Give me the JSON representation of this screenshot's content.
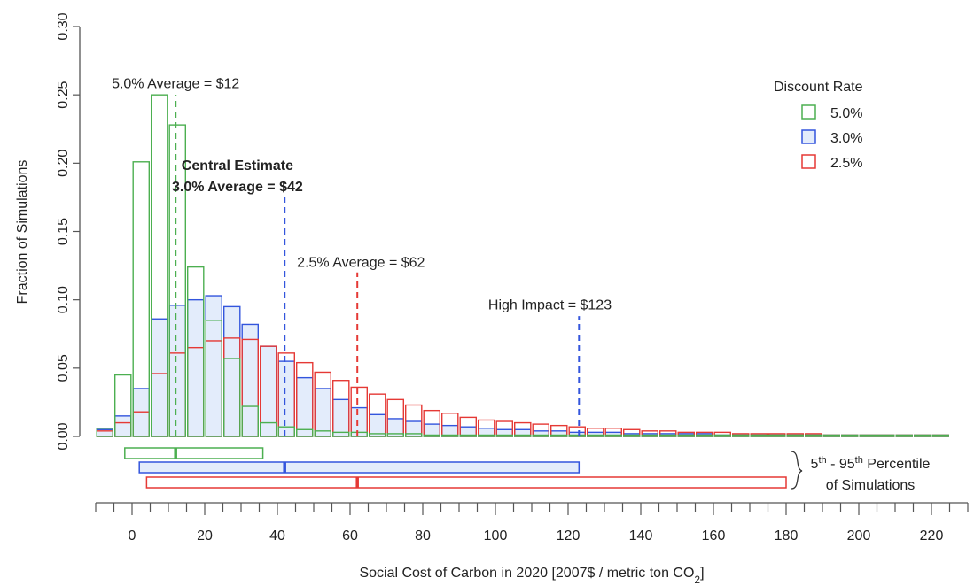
{
  "chart_data": {
    "type": "bar",
    "subtype": "overlaid-histogram",
    "xlabel": "Social Cost of Carbon in 2020 [2007$ / metric ton CO",
    "xlabel_subscript": "2",
    "xlabel_suffix": "]",
    "ylabel": "Fraction of Simulations",
    "xlim": [
      -10,
      230
    ],
    "ylim": [
      0,
      0.3
    ],
    "x_ticks": [
      0,
      20,
      40,
      60,
      80,
      100,
      120,
      140,
      160,
      180,
      200,
      220
    ],
    "y_ticks": [
      "0.00",
      "0.05",
      "0.10",
      "0.15",
      "0.20",
      "0.25",
      "0.30"
    ],
    "minor_tick_step": 5,
    "bin_width": 5,
    "grid": false,
    "legend": {
      "title": "Discount Rate",
      "position": "top-right",
      "entries": [
        "5.0%",
        "3.0%",
        "2.5%"
      ]
    },
    "series": [
      {
        "name": "5.0%",
        "color": "#4caf50",
        "fill": "none",
        "bin_start": -10,
        "values": [
          0.006,
          0.045,
          0.201,
          0.25,
          0.228,
          0.124,
          0.085,
          0.057,
          0.022,
          0.01,
          0.007,
          0.005,
          0.004,
          0.003,
          0.003,
          0.002,
          0.002,
          0.002,
          0.001,
          0.001,
          0.001,
          0.001,
          0.001,
          0.001,
          0.001,
          0.001,
          0.001,
          0.001,
          0.001,
          0.001,
          0.001,
          0.001,
          0.001,
          0.001,
          0.001,
          0.001,
          0.001,
          0.001,
          0.001,
          0.001,
          0.001,
          0.001,
          0.001,
          0.001,
          0.001,
          0.001,
          0.001
        ]
      },
      {
        "name": "3.0%",
        "color": "#3355dd",
        "fill": "#e3ecfb",
        "bin_start": -10,
        "values": [
          0.005,
          0.015,
          0.035,
          0.086,
          0.096,
          0.1,
          0.103,
          0.095,
          0.082,
          0.066,
          0.055,
          0.043,
          0.035,
          0.027,
          0.021,
          0.016,
          0.013,
          0.011,
          0.009,
          0.008,
          0.007,
          0.006,
          0.005,
          0.005,
          0.004,
          0.004,
          0.003,
          0.003,
          0.003,
          0.002,
          0.002,
          0.002,
          0.002,
          0.002,
          0.001,
          0.001,
          0.001,
          0.001,
          0.001,
          0.001,
          0.001,
          0.001,
          0.001,
          0.001,
          0.001,
          0.001,
          0.001
        ]
      },
      {
        "name": "2.5%",
        "color": "#e53935",
        "fill": "none",
        "bin_start": -10,
        "values": [
          0.004,
          0.01,
          0.018,
          0.046,
          0.061,
          0.065,
          0.07,
          0.072,
          0.071,
          0.066,
          0.061,
          0.054,
          0.047,
          0.041,
          0.036,
          0.031,
          0.027,
          0.023,
          0.019,
          0.017,
          0.014,
          0.012,
          0.011,
          0.01,
          0.009,
          0.008,
          0.007,
          0.006,
          0.006,
          0.005,
          0.004,
          0.004,
          0.003,
          0.003,
          0.003,
          0.002,
          0.002,
          0.002,
          0.002,
          0.002,
          0.001,
          0.001,
          0.001,
          0.001,
          0.001,
          0.001,
          0.001
        ]
      }
    ],
    "reference_lines": [
      {
        "series": "5.0%",
        "x": 12,
        "color": "#4caf50",
        "ymax": 0.25,
        "label_lines": [
          "5.0% Average = $12"
        ],
        "bold": false,
        "label_x": 12,
        "label_y": 0.255,
        "anchor": "middle"
      },
      {
        "series": "3.0%",
        "x": 42,
        "color": "#3355dd",
        "ymax": 0.175,
        "label_lines": [
          "Central Estimate",
          "3.0% Average = $42"
        ],
        "bold": true,
        "label_x": 29,
        "label_y": 0.195,
        "anchor": "middle"
      },
      {
        "series": "2.5%",
        "x": 62,
        "color": "#e53935",
        "ymax": 0.12,
        "label_lines": [
          "2.5% Average = $62"
        ],
        "bold": false,
        "label_x": 63,
        "label_y": 0.124,
        "anchor": "middle"
      },
      {
        "series": "3.0%",
        "x": 123,
        "color": "#3355dd",
        "ymax": 0.088,
        "label_lines": [
          "High Impact = $123"
        ],
        "bold": false,
        "label_x": 115,
        "label_y": 0.093,
        "anchor": "middle"
      }
    ],
    "percentile_ranges": {
      "label_line1": "5",
      "label_line1_sup1": "th",
      "label_line1_mid": " - 95",
      "label_line1_sup2": "th",
      "label_line1_end": " Percentile",
      "label_line2": "of Simulations",
      "ranges": [
        {
          "series": "5.0%",
          "low": -2,
          "high": 36,
          "mean": 12,
          "color": "#4caf50",
          "fill": "#ffffff"
        },
        {
          "series": "3.0%",
          "low": 2,
          "high": 123,
          "mean": 42,
          "color": "#3355dd",
          "fill": "#e3ecfb"
        },
        {
          "series": "2.5%",
          "low": 4,
          "high": 180,
          "mean": 62,
          "color": "#e53935",
          "fill": "#ffffff"
        }
      ]
    }
  }
}
